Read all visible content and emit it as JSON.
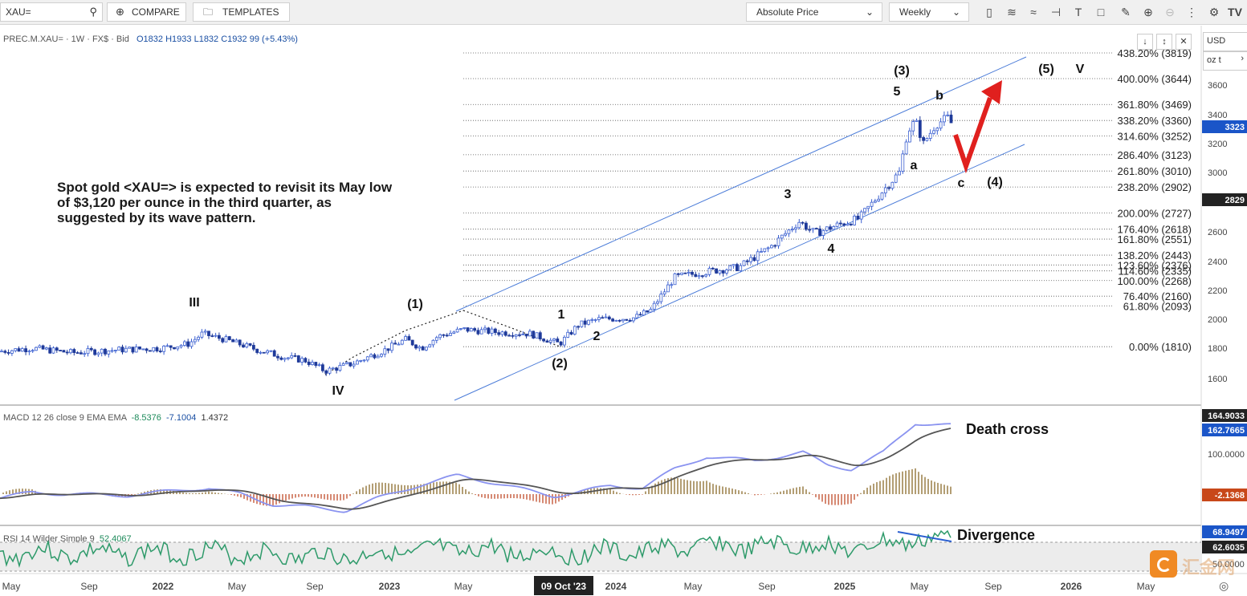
{
  "toolbar": {
    "symbol_value": "XAU=",
    "compare_label": "COMPARE",
    "templates_label": "TEMPLATES",
    "price_mode": "Absolute Price",
    "interval": "Weekly",
    "currency": "USD",
    "unit": "oz t"
  },
  "legend": {
    "instrument": "PREC.M.XAU=",
    "interval": "1W",
    "currency": "FX$",
    "side": "Bid",
    "open": "O1832",
    "high": "H1933",
    "low": "L1832",
    "close": "C1932",
    "change": "99 (+5.43%)"
  },
  "annotation": {
    "text": "Spot gold <XAU=> is expected to revisit its May low of $3,120 per ounce in the third quarter, as suggested by its wave pattern."
  },
  "chart_data": [
    {
      "type": "line",
      "panel": "price",
      "y_ticks": [
        "1600",
        "1800",
        "2000",
        "2200",
        "2400",
        "2600",
        "2800",
        "3000",
        "3200",
        "3400",
        "3600"
      ],
      "ylim": [
        1430,
        3830
      ],
      "x_ticks": [
        "May",
        "Sep",
        "2022",
        "May",
        "Sep",
        "2023",
        "May",
        "09 Oct '23",
        "2024",
        "May",
        "Sep",
        "2025",
        "May",
        "Sep",
        "2026",
        "May"
      ],
      "last_price_tag": "3323",
      "crosshair_tag": "2829",
      "fib_levels": [
        {
          "label": "438.20% (3819)",
          "value": 3819
        },
        {
          "label": "400.00% (3644)",
          "value": 3644
        },
        {
          "label": "361.80% (3469)",
          "value": 3469
        },
        {
          "label": "338.20% (3360)",
          "value": 3360
        },
        {
          "label": "314.60% (3252)",
          "value": 3252
        },
        {
          "label": "286.40% (3123)",
          "value": 3123
        },
        {
          "label": "261.80% (3010)",
          "value": 3010
        },
        {
          "label": "238.20% (2902)",
          "value": 2902
        },
        {
          "label": "200.00% (2727)",
          "value": 2727
        },
        {
          "label": "176.40% (2618)",
          "value": 2618
        },
        {
          "label": "161.80% (2551)",
          "value": 2551
        },
        {
          "label": "138.20% (2443)",
          "value": 2443
        },
        {
          "label": "123.60% (2376)",
          "value": 2376
        },
        {
          "label": "114.60% (2335)",
          "value": 2335
        },
        {
          "label": "100.00% (2268)",
          "value": 2268
        },
        {
          "label": "76.40% (2160)",
          "value": 2160
        },
        {
          "label": "61.80% (2093)",
          "value": 2093
        },
        {
          "label": "0.00% (1810)",
          "value": 1810
        }
      ],
      "wave_labels": [
        "III",
        "IV",
        "(1)",
        "(2)",
        "1",
        "2",
        "3",
        "4",
        "5",
        "(3)",
        "a",
        "b",
        "c",
        "(4)",
        "(5)",
        "V"
      ]
    },
    {
      "type": "line",
      "panel": "macd",
      "title": "MACD 12 26 close 9 EMA EMA",
      "values": [
        "-8.5376",
        "-7.1004",
        "1.4372"
      ],
      "y_ticks": [
        "100.0000"
      ],
      "tags": [
        "164.9033",
        "162.7665",
        "-2.1368"
      ],
      "annotation": "Death cross"
    },
    {
      "type": "line",
      "panel": "rsi",
      "title": "RSI 14 Wilder Simple 9",
      "value": "52.4067",
      "y_ticks": [
        "50.0000"
      ],
      "tags": [
        "68.9497",
        "62.6035"
      ],
      "annotation": "Divergence"
    }
  ],
  "colors": {
    "bull": "#3a5fd0",
    "bear": "#1f3a9a",
    "channel": "#4a7bd8",
    "arrow": "#e0201e",
    "macd_line": "#8a93f0",
    "signal_line": "#555555",
    "rsi_line": "#2e9a6a",
    "tag_blue": "#1a55c8",
    "tag_dark": "#222222",
    "tag_red": "#c8481a"
  }
}
